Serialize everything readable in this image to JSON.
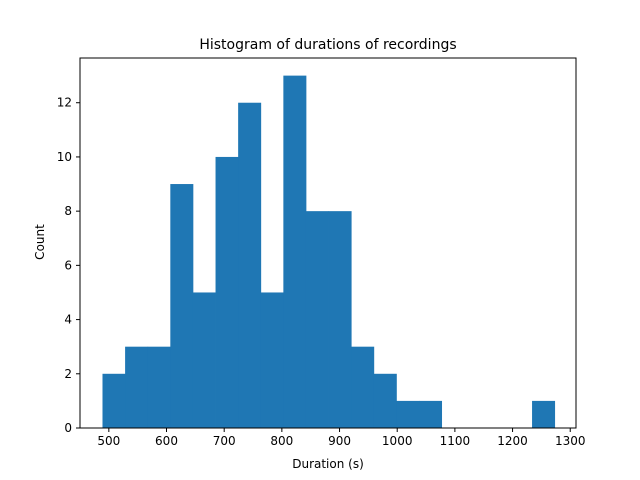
{
  "chart_data": {
    "type": "bar",
    "title": "Histogram of durations of recordings",
    "xlabel": "Duration (s)",
    "ylabel": "Count",
    "xlim": [
      450,
      1310
    ],
    "ylim": [
      0,
      13.65
    ],
    "xticks": [
      500,
      600,
      700,
      800,
      900,
      1000,
      1100,
      1200,
      1300
    ],
    "yticks": [
      0,
      2,
      4,
      6,
      8,
      10,
      12
    ],
    "grid": false,
    "bar_color": "#1f77b4",
    "bins": [
      {
        "start": 489,
        "end": 528.2,
        "count": 2
      },
      {
        "start": 528.2,
        "end": 567.4,
        "count": 3
      },
      {
        "start": 567.4,
        "end": 606.6,
        "count": 3
      },
      {
        "start": 606.6,
        "end": 645.8,
        "count": 9
      },
      {
        "start": 645.8,
        "end": 685,
        "count": 5
      },
      {
        "start": 685,
        "end": 724.2,
        "count": 10
      },
      {
        "start": 724.2,
        "end": 763.4,
        "count": 12
      },
      {
        "start": 763.4,
        "end": 802.6,
        "count": 5
      },
      {
        "start": 802.6,
        "end": 841.8,
        "count": 13
      },
      {
        "start": 841.8,
        "end": 881,
        "count": 8
      },
      {
        "start": 881,
        "end": 920.2,
        "count": 8
      },
      {
        "start": 920.2,
        "end": 959.4,
        "count": 3
      },
      {
        "start": 959.4,
        "end": 998.6,
        "count": 2
      },
      {
        "start": 998.6,
        "end": 1037.8,
        "count": 1
      },
      {
        "start": 1037.8,
        "end": 1077,
        "count": 1
      },
      {
        "start": 1077,
        "end": 1116.2,
        "count": 0
      },
      {
        "start": 1116.2,
        "end": 1155.4,
        "count": 0
      },
      {
        "start": 1155.4,
        "end": 1194.6,
        "count": 0
      },
      {
        "start": 1194.6,
        "end": 1233.8,
        "count": 0
      },
      {
        "start": 1233.8,
        "end": 1273,
        "count": 1
      }
    ]
  }
}
